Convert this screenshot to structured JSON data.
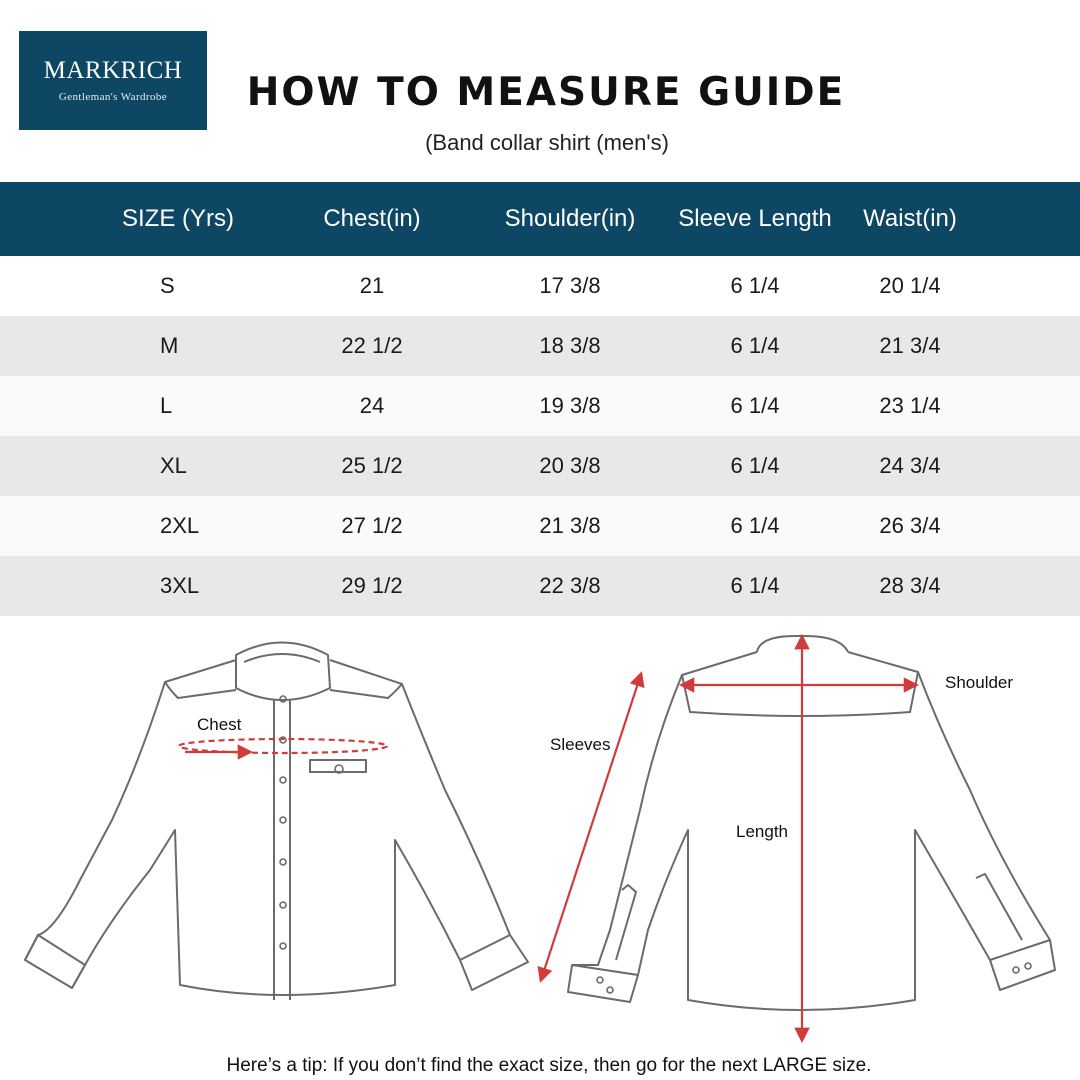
{
  "brand": {
    "name": "MARKRICH",
    "tagline": "Gentleman's Wardrobe",
    "color": "#0e4763"
  },
  "title": "HOW TO MEASURE GUIDE",
  "subtitle": "(Band collar shirt (men's)",
  "table": {
    "headers": [
      "SIZE (Yrs)",
      "Chest(in)",
      "Shoulder(in)",
      "Sleeve Length",
      "Waist(in)"
    ],
    "rows": [
      [
        "S",
        "21",
        "17 3/8",
        "6 1/4",
        "20 1/4"
      ],
      [
        "M",
        "22 1/2",
        "18 3/8",
        "6 1/4",
        "21 3/4"
      ],
      [
        "L",
        "24",
        "19 3/8",
        "6 1/4",
        "23 1/4"
      ],
      [
        "XL",
        "25 1/2",
        "20 3/8",
        "6 1/4",
        "24 3/4"
      ],
      [
        "2XL",
        "27 1/2",
        "21 3/8",
        "6 1/4",
        "26 3/4"
      ],
      [
        "3XL",
        "29 1/2",
        "22 3/8",
        "6 1/4",
        "28 3/4"
      ]
    ]
  },
  "diagram": {
    "labels": {
      "chest": "Chest",
      "sleeves": "Sleeves",
      "length": "Length",
      "shoulder": "Shoulder"
    },
    "measure_color": "#d13b3b",
    "outline_color": "#6b6b6b"
  },
  "tip": "Here’s a tip: If you don’t find the exact size, then go for the next LARGE size."
}
